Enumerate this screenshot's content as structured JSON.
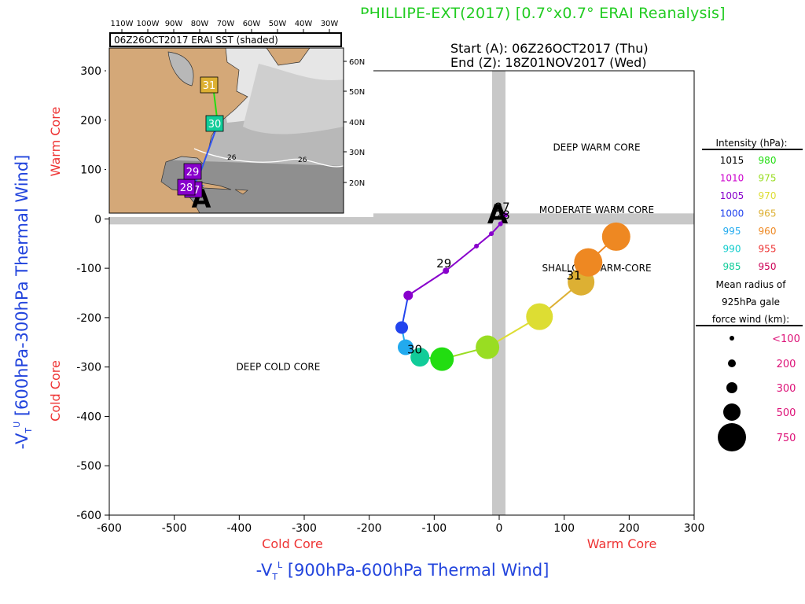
{
  "page": {
    "title": "PHILLIPE-EXT(2017) [0.7°x0.7° ERAI Reanalysis]",
    "start": "Start (A): 06Z26OCT2017 (Thu)",
    "end": "End (Z): 18Z01NOV2017 (Wed)"
  },
  "chart_data": {
    "type": "scatter",
    "title": "PHILLIPE-EXT(2017) [0.7°x0.7° ERAI Reanalysis]",
    "xlabel": "-VTL [900hPa-600hPa Thermal Wind]",
    "ylabel": "-VTU [600hPa-300hPa Thermal Wind]",
    "xlim": [
      -600,
      300
    ],
    "ylim": [
      -600,
      300
    ],
    "x_ticks": [
      -600,
      -500,
      -400,
      -300,
      -200,
      -100,
      0,
      100,
      200,
      300
    ],
    "y_ticks": [
      300,
      200,
      100,
      0,
      -100,
      -200,
      -300,
      -400,
      -500,
      -600
    ],
    "x_side_labels": {
      "left": "Cold Core",
      "right": "Warm Core"
    },
    "y_side_labels": {
      "top": "Warm Core",
      "bottom": "Cold Core"
    },
    "axis_label_parts": {
      "x_prefix": "-V",
      "x_sub": "T",
      "x_sup": "L",
      "x_suffix": " [900hPa-600hPa Thermal Wind]",
      "y_prefix": "-V",
      "y_sub": "T",
      "y_sup": "U",
      "y_suffix": " [600hPa-300hPa Thermal Wind]"
    },
    "regions": [
      {
        "label": "DEEP WARM CORE",
        "x": 150,
        "y": 145
      },
      {
        "label": "MODERATE WARM CORE",
        "x": 150,
        "y": 18
      },
      {
        "label": "SHALLOW WARM-CORE",
        "x": 150,
        "y": -100
      },
      {
        "label": "DEEP COLD CORE",
        "x": -340,
        "y": -300
      }
    ],
    "start_marker": {
      "label": "A",
      "x": 0,
      "y": 10
    },
    "series": [
      {
        "points": [
          {
            "x": 10,
            "y": 8,
            "color": "#8800cc",
            "size": 3
          },
          {
            "x": 2,
            "y": -10,
            "color": "#8800cc",
            "size": 3
          },
          {
            "x": -12,
            "y": -30,
            "color": "#8800cc",
            "size": 3
          },
          {
            "x": -35,
            "y": -55,
            "color": "#8800cc",
            "size": 3
          },
          {
            "x": -82,
            "y": -105,
            "color": "#8800cc",
            "size": 4
          },
          {
            "x": -140,
            "y": -155,
            "color": "#8800cc",
            "size": 6
          },
          {
            "x": -150,
            "y": -220,
            "color": "#2244ee",
            "size": 8
          },
          {
            "x": -144,
            "y": -260,
            "color": "#22aaee",
            "size": 10
          },
          {
            "x": -122,
            "y": -280,
            "color": "#11cc99",
            "size": 12
          },
          {
            "x": -88,
            "y": -284,
            "color": "#22dd11",
            "size": 15
          },
          {
            "x": -18,
            "y": -260,
            "color": "#99dd22",
            "size": 15
          },
          {
            "x": 62,
            "y": -198,
            "color": "#dddd33",
            "size": 17
          },
          {
            "x": 126,
            "y": -128,
            "color": "#ddb033",
            "size": 17
          },
          {
            "x": 137,
            "y": -88,
            "color": "#ee8822",
            "size": 18
          },
          {
            "x": 180,
            "y": -36,
            "color": "#ee8822",
            "size": 18
          }
        ]
      }
    ],
    "day_labels": [
      {
        "label": "27",
        "x": 5,
        "y": 24
      },
      {
        "label": "28",
        "x": 5,
        "y": 8
      },
      {
        "label": "29",
        "x": -85,
        "y": -90
      },
      {
        "label": "30",
        "x": -130,
        "y": -265
      },
      {
        "label": "31",
        "x": 115,
        "y": -115
      }
    ],
    "legend": {
      "intensity_title": "Intensity (hPa):",
      "intensity": [
        {
          "left": "1015",
          "left_color": "#000000",
          "right": "980",
          "right_color": "#22dd11"
        },
        {
          "left": "1010",
          "left_color": "#cc00cc",
          "right": "975",
          "right_color": "#99dd22"
        },
        {
          "left": "1005",
          "left_color": "#8800cc",
          "right": "970",
          "right_color": "#dddd33"
        },
        {
          "left": "1000",
          "left_color": "#2244ee",
          "right": "965",
          "right_color": "#ddb033"
        },
        {
          "left": "995",
          "left_color": "#22aaee",
          "right": "960",
          "right_color": "#ee8822"
        },
        {
          "left": "990",
          "left_color": "#11cccc",
          "right": "955",
          "right_color": "#ee3333"
        },
        {
          "left": "985",
          "left_color": "#11cc99",
          "right": "950",
          "right_color": "#cc0055"
        }
      ],
      "radius_title": [
        "Mean radius of",
        "925hPa gale",
        "force wind (km):"
      ],
      "radius": [
        {
          "label": "<100",
          "size": 3
        },
        {
          "label": "200",
          "size": 5
        },
        {
          "label": "300",
          "size": 7
        },
        {
          "label": "500",
          "size": 11
        },
        {
          "label": "750",
          "size": 18
        }
      ],
      "label_color": "#dd1177"
    },
    "inset": {
      "title": "06Z26OCT2017 ERAI SST (shaded)",
      "lon_labels": [
        "110W",
        "100W",
        "90W",
        "80W",
        "70W",
        "60W",
        "50W",
        "40W",
        "30W"
      ],
      "lat_labels": [
        "60N",
        "50N",
        "40N",
        "30N",
        "20N"
      ],
      "sst_contour_label": "26",
      "track": [
        {
          "label": "A",
          "color": "#8800cc"
        },
        {
          "label": "27",
          "color": "#8800cc"
        },
        {
          "label": "28",
          "color": "#8800cc"
        },
        {
          "label": "29",
          "color": "#8800cc"
        },
        {
          "label": "30",
          "color": "#11cc99"
        },
        {
          "label": "31",
          "color": "#ddb033"
        }
      ]
    }
  }
}
